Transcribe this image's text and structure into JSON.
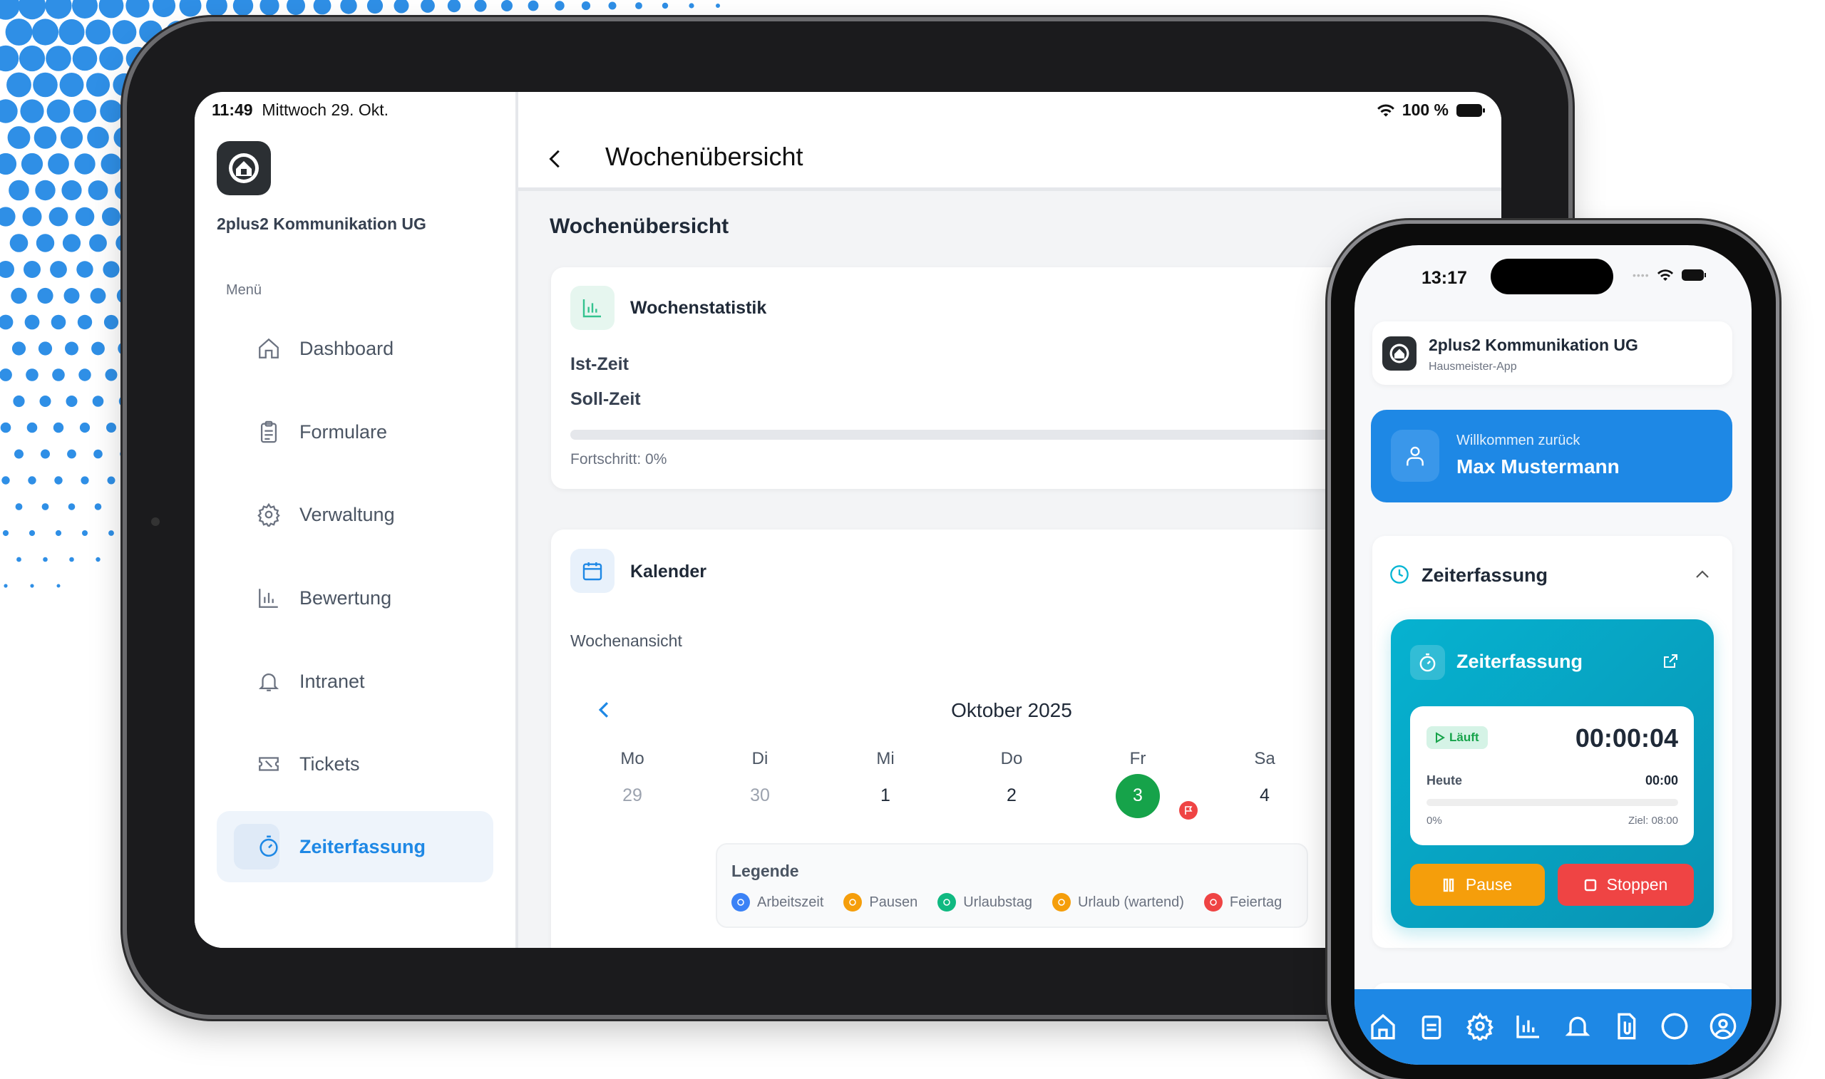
{
  "tablet": {
    "status_bar": {
      "time": "11:49",
      "date": "Mittwoch 29. Okt.",
      "battery": "100 %"
    },
    "sidebar": {
      "company": "2plus2 Kommunikation UG",
      "menu_label": "Menü",
      "items": [
        {
          "label": "Dashboard",
          "icon": "home-icon"
        },
        {
          "label": "Formulare",
          "icon": "clipboard-icon"
        },
        {
          "label": "Verwaltung",
          "icon": "gear-icon"
        },
        {
          "label": "Bewertung",
          "icon": "bar-chart-icon"
        },
        {
          "label": "Intranet",
          "icon": "bell-icon"
        },
        {
          "label": "Tickets",
          "icon": "ticket-icon"
        },
        {
          "label": "Zeiterfassung",
          "icon": "stopwatch-icon",
          "active": true
        }
      ]
    },
    "header": {
      "title": "Wochenübersicht"
    },
    "main": {
      "section_title": "Wochenübersicht",
      "stats_card": {
        "title": "Wochenstatistik",
        "ist_label": "Ist-Zeit",
        "soll_label": "Soll-Zeit",
        "progress_text": "Fortschritt: 0%",
        "progress": 0
      },
      "calendar_card": {
        "title": "Kalender",
        "view_label": "Wochenansicht",
        "month": "Oktober 2025",
        "days": [
          {
            "name": "Mo",
            "num": "29",
            "muted": true
          },
          {
            "name": "Di",
            "num": "30",
            "muted": true
          },
          {
            "name": "Mi",
            "num": "1"
          },
          {
            "name": "Do",
            "num": "2"
          },
          {
            "name": "Fr",
            "num": "3",
            "today": true,
            "holiday": true
          },
          {
            "name": "Sa",
            "num": "4"
          }
        ],
        "legend": {
          "title": "Legende",
          "items": [
            {
              "label": "Arbeitszeit",
              "color": "#3b82f6"
            },
            {
              "label": "Pausen",
              "color": "#f59e0b"
            },
            {
              "label": "Urlaubstag",
              "color": "#10b981"
            },
            {
              "label": "Urlaub (wartend)",
              "color": "#f59e0b"
            },
            {
              "label": "Feiertag",
              "color": "#ef4444"
            }
          ]
        }
      }
    }
  },
  "phone": {
    "status_bar": {
      "time": "13:17"
    },
    "app_header": {
      "company": "2plus2 Kommunikation UG",
      "subtitle": "Hausmeister-App"
    },
    "welcome": {
      "greeting": "Willkommen zurück",
      "name": "Max Mustermann"
    },
    "time_section": {
      "title": "Zeiterfassung",
      "widget": {
        "title": "Zeiterfassung",
        "status": "Läuft",
        "timer": "00:00:04",
        "today_label": "Heute",
        "today_value": "00:00",
        "percent": "0%",
        "progress": 0,
        "goal": "Ziel: 08:00",
        "pause_label": "Pause",
        "stop_label": "Stoppen"
      }
    },
    "bottom_nav": [
      "home-icon",
      "clipboard-icon",
      "gear-icon",
      "bar-chart-icon",
      "bell-icon",
      "document-icon",
      "moon-icon",
      "user-circle-icon"
    ]
  },
  "colors": {
    "primary": "#1e88e5",
    "teal": "#06a9c6",
    "pause": "#f59e0b",
    "stop": "#ef4444",
    "today": "#16a34a"
  }
}
